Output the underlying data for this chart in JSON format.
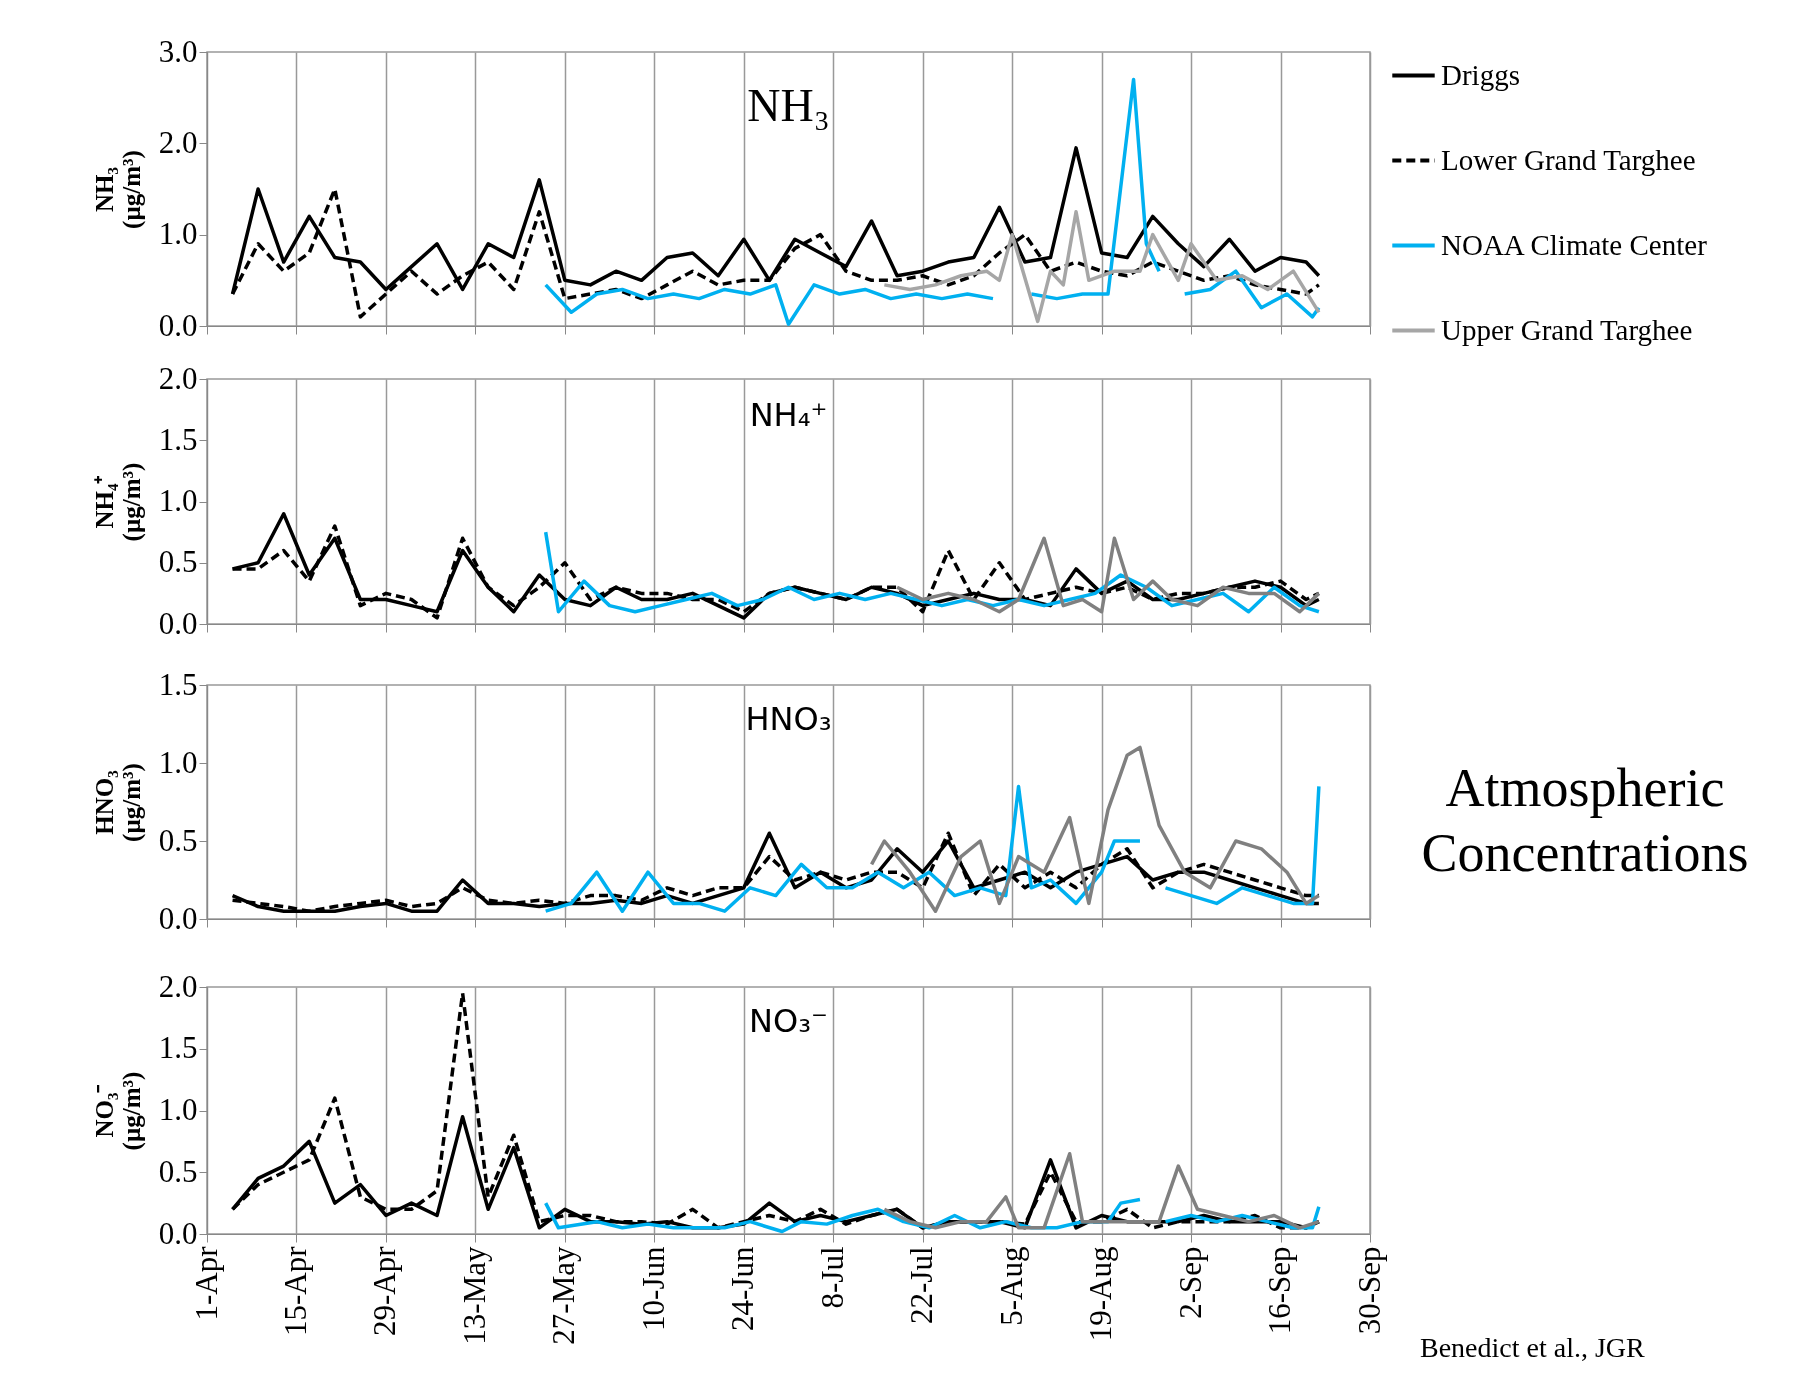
{
  "chart_data": [
    {
      "type": "line",
      "title": "NH₃",
      "ylabel": "NH₃ (µg/m³)",
      "xlim": [
        "--04-01",
        "--09-30"
      ],
      "xticks": [
        {
          "value": "--04-01",
          "label": "1-Apr"
        },
        {
          "value": "--04-15",
          "label": "15-Apr"
        },
        {
          "value": "--04-29",
          "label": "29-Apr"
        },
        {
          "value": "--05-13",
          "label": "13-May"
        },
        {
          "value": "--05-27",
          "label": "27-May"
        },
        {
          "value": "--06-10",
          "label": "10-Jun"
        },
        {
          "value": "--06-24",
          "label": "24-Jun"
        },
        {
          "value": "--07-08",
          "label": "8-Jul"
        },
        {
          "value": "--07-22",
          "label": "22-Jul"
        },
        {
          "value": "--08-05",
          "label": "5-Aug"
        },
        {
          "value": "--08-19",
          "label": "19-Aug"
        },
        {
          "value": "--09-02",
          "label": "2-Sep"
        },
        {
          "value": "--09-16",
          "label": "16-Sep"
        },
        {
          "value": "--09-30",
          "label": "30-Sep"
        }
      ],
      "ylim": [
        0,
        3
      ],
      "yticks": [
        {
          "value": 0,
          "label": "0.0"
        },
        {
          "value": 1,
          "label": "1.0"
        },
        {
          "value": 2,
          "label": "2.0"
        },
        {
          "value": 3,
          "label": "3.0"
        }
      ],
      "grid": "x",
      "tick_labels": "y",
      "legend": "right",
      "x": [
        "--04-05",
        "--04-09",
        "--04-13",
        "--04-17",
        "--04-21",
        "--04-25",
        "--04-29",
        "--05-03",
        "--05-07",
        "--05-11",
        "--05-15",
        "--05-19",
        "--05-23",
        "--05-27",
        "--05-31",
        "--06-04",
        "--06-08",
        "--06-12",
        "--06-16",
        "--06-20",
        "--06-24",
        "--06-28",
        "--07-02",
        "--07-06",
        "--07-10",
        "--07-14",
        "--07-18",
        "--07-22",
        "--07-26",
        "--07-30",
        "--08-03",
        "--08-07",
        "--08-11",
        "--08-15",
        "--08-19",
        "--08-23",
        "--08-27",
        "--08-31",
        "--09-04",
        "--09-08",
        "--09-12",
        "--09-16",
        "--09-20",
        "--09-22"
      ],
      "series": [
        {
          "name": "Driggs",
          "color": "#000000",
          "line_style": "solid",
          "values": [
            0.35,
            1.5,
            0.7,
            1.2,
            0.75,
            0.7,
            0.4,
            0.65,
            0.9,
            0.4,
            0.9,
            0.75,
            1.6,
            0.5,
            0.45,
            0.6,
            0.5,
            0.75,
            0.8,
            0.55,
            0.95,
            0.5,
            0.95,
            0.8,
            0.65,
            1.15,
            0.55,
            0.6,
            0.7,
            0.75,
            1.3,
            0.7,
            0.75,
            1.95,
            0.8,
            0.75,
            1.2,
            0.9,
            0.65,
            0.95,
            0.6,
            0.75,
            0.7,
            0.55
          ]
        },
        {
          "name": "Lower Grand Targhee",
          "color": "#000000",
          "line_style": "dashed",
          "values": [
            0.35,
            0.9,
            0.6,
            0.8,
            1.5,
            0.1,
            0.35,
            0.6,
            0.35,
            0.55,
            0.7,
            0.4,
            1.25,
            0.3,
            0.35,
            0.4,
            0.3,
            0.45,
            0.6,
            0.45,
            0.5,
            0.5,
            0.85,
            1.0,
            0.6,
            0.5,
            0.5,
            0.55,
            0.45,
            0.55,
            0.8,
            1.0,
            0.6,
            0.7,
            0.6,
            0.55,
            0.7,
            0.6,
            0.5,
            0.55,
            0.45,
            0.4,
            0.35,
            0.45
          ]
        },
        {
          "name": "NOAA Climate Center",
          "color": "#00b0f0",
          "line_style": "solid",
          "x": [
            "--05-24",
            "--05-28",
            "--06-01",
            "--06-05",
            "--06-09",
            "--06-13",
            "--06-17",
            "--06-21",
            "--06-25",
            "--06-29",
            "--07-01",
            "--07-05",
            "--07-09",
            "--07-13",
            "--07-17",
            "--07-21",
            "--07-25",
            "--07-29",
            "--08-02",
            "--08-04",
            "--08-08",
            "--08-12",
            "--08-16",
            "--08-20",
            "--08-24",
            "--08-26",
            "--08-28",
            "--08-30",
            "--09-01",
            "--09-05",
            "--09-09",
            "--09-13",
            "--09-17",
            "--09-21",
            "--09-22"
          ],
          "values": [
            0.45,
            0.15,
            0.35,
            0.4,
            0.3,
            0.35,
            0.3,
            0.4,
            0.35,
            0.45,
            0.02,
            0.45,
            0.35,
            0.4,
            0.3,
            0.35,
            0.3,
            0.35,
            0.3,
            null,
            0.35,
            0.3,
            0.35,
            0.35,
            2.7,
            0.9,
            0.6,
            null,
            0.35,
            0.4,
            0.6,
            0.2,
            0.35,
            0.1,
            0.2
          ]
        },
        {
          "name": "Upper Grand Targhee",
          "color": "#a6a6a6",
          "line_style": "solid",
          "x": [
            "--07-16",
            "--07-20",
            "--07-24",
            "--07-28",
            "--08-01",
            "--08-03",
            "--08-05",
            "--08-09",
            "--08-11",
            "--08-13",
            "--08-15",
            "--08-17",
            "--08-21",
            "--08-25",
            "--08-27",
            "--08-31",
            "--09-02",
            "--09-06",
            "--09-10",
            "--09-14",
            "--09-18",
            "--09-22"
          ],
          "values": [
            0.45,
            0.4,
            0.45,
            0.55,
            0.6,
            0.5,
            1.0,
            0.05,
            0.6,
            0.45,
            1.25,
            0.5,
            0.6,
            0.6,
            1.0,
            0.5,
            0.9,
            0.5,
            0.55,
            0.4,
            0.6,
            0.15
          ]
        }
      ]
    },
    {
      "type": "line",
      "title": "NH₄⁺",
      "ylabel": "NH₄⁺ (µg/m³)",
      "xlim": [
        "--04-01",
        "--09-30"
      ],
      "xticks": [
        {
          "value": "--04-01",
          "label": "1-Apr"
        },
        {
          "value": "--04-15",
          "label": "15-Apr"
        },
        {
          "value": "--04-29",
          "label": "29-Apr"
        },
        {
          "value": "--05-13",
          "label": "13-May"
        },
        {
          "value": "--05-27",
          "label": "27-May"
        },
        {
          "value": "--06-10",
          "label": "10-Jun"
        },
        {
          "value": "--06-24",
          "label": "24-Jun"
        },
        {
          "value": "--07-08",
          "label": "8-Jul"
        },
        {
          "value": "--07-22",
          "label": "22-Jul"
        },
        {
          "value": "--08-05",
          "label": "5-Aug"
        },
        {
          "value": "--08-19",
          "label": "19-Aug"
        },
        {
          "value": "--09-02",
          "label": "2-Sep"
        },
        {
          "value": "--09-16",
          "label": "16-Sep"
        },
        {
          "value": "--09-30",
          "label": "30-Sep"
        }
      ],
      "ylim": [
        0,
        2
      ],
      "yticks": [
        {
          "value": 0,
          "label": "0.0"
        },
        {
          "value": 0.5,
          "label": "0.5"
        },
        {
          "value": 1,
          "label": "1.0"
        },
        {
          "value": 1.5,
          "label": "1.5"
        },
        {
          "value": 2,
          "label": "2.0"
        }
      ],
      "grid": "x",
      "tick_labels": "y",
      "x": [
        "--04-05",
        "--04-09",
        "--04-13",
        "--04-17",
        "--04-21",
        "--04-25",
        "--04-29",
        "--05-03",
        "--05-07",
        "--05-11",
        "--05-15",
        "--05-19",
        "--05-23",
        "--05-27",
        "--05-31",
        "--06-04",
        "--06-08",
        "--06-12",
        "--06-16",
        "--06-20",
        "--06-24",
        "--06-28",
        "--07-02",
        "--07-06",
        "--07-10",
        "--07-14",
        "--07-18",
        "--07-22",
        "--07-26",
        "--07-30",
        "--08-03",
        "--08-07",
        "--08-11",
        "--08-15",
        "--08-19",
        "--08-23",
        "--08-27",
        "--08-31",
        "--09-04",
        "--09-08",
        "--09-12",
        "--09-16",
        "--09-20",
        "--09-22"
      ],
      "series": [
        {
          "color": "#000000",
          "line_style": "solid",
          "values": [
            0.45,
            0.5,
            0.9,
            0.4,
            0.7,
            0.2,
            0.2,
            0.15,
            0.1,
            0.6,
            0.3,
            0.1,
            0.4,
            0.2,
            0.15,
            0.3,
            0.2,
            0.2,
            0.25,
            0.15,
            0.05,
            0.25,
            0.3,
            0.25,
            0.2,
            0.3,
            0.25,
            0.15,
            0.2,
            0.25,
            0.2,
            0.2,
            0.15,
            0.45,
            0.25,
            0.35,
            0.2,
            0.2,
            0.25,
            0.3,
            0.35,
            0.3,
            0.15,
            0.2
          ]
        },
        {
          "color": "#000000",
          "line_style": "dashed",
          "values": [
            0.45,
            0.45,
            0.6,
            0.35,
            0.8,
            0.15,
            0.25,
            0.2,
            0.05,
            0.7,
            0.3,
            0.15,
            0.3,
            0.5,
            0.2,
            0.3,
            0.25,
            0.25,
            0.2,
            0.2,
            0.1,
            0.25,
            0.3,
            0.25,
            0.2,
            0.3,
            0.3,
            0.1,
            0.6,
            0.2,
            0.5,
            0.2,
            0.25,
            0.3,
            0.25,
            0.3,
            0.2,
            0.25,
            0.25,
            0.3,
            0.3,
            0.35,
            0.2,
            0.25
          ]
        },
        {
          "color": "#00b0f0",
          "line_style": "solid",
          "x": [
            "--05-24",
            "--05-26",
            "--05-30",
            "--06-03",
            "--06-07",
            "--06-11",
            "--06-15",
            "--06-19",
            "--06-23",
            "--06-27",
            "--07-01",
            "--07-05",
            "--07-09",
            "--07-13",
            "--07-17",
            "--07-21",
            "--07-25",
            "--07-29",
            "--08-02",
            "--08-06",
            "--08-10",
            "--08-14",
            "--08-18",
            "--08-22",
            "--08-26",
            "--08-30",
            "--09-03",
            "--09-07",
            "--09-11",
            "--09-15",
            "--09-19",
            "--09-22"
          ],
          "values": [
            0.75,
            0.1,
            0.35,
            0.15,
            0.1,
            0.15,
            0.2,
            0.25,
            0.15,
            0.2,
            0.3,
            0.2,
            0.25,
            0.2,
            0.25,
            0.2,
            0.15,
            0.2,
            0.15,
            0.2,
            0.15,
            0.2,
            0.25,
            0.4,
            0.3,
            0.15,
            0.2,
            0.25,
            0.1,
            0.3,
            0.15,
            0.1
          ]
        },
        {
          "color": "#808080",
          "line_style": "solid",
          "x": [
            "--07-18",
            "--07-22",
            "--07-26",
            "--07-30",
            "--08-03",
            "--08-06",
            "--08-10",
            "--08-13",
            "--08-16",
            "--08-19",
            "--08-21",
            "--08-24",
            "--08-27",
            "--08-30",
            "--09-03",
            "--09-07",
            "--09-11",
            "--09-15",
            "--09-19",
            "--09-22"
          ],
          "values": [
            0.3,
            0.2,
            0.25,
            0.2,
            0.1,
            0.2,
            0.7,
            0.15,
            0.2,
            0.1,
            0.7,
            0.2,
            0.35,
            0.2,
            0.15,
            0.3,
            0.25,
            0.25,
            0.1,
            0.25
          ]
        }
      ]
    },
    {
      "type": "line",
      "title": "HNO₃",
      "ylabel": "HNO₃ (µg/m³)",
      "annotations": [
        "Atmospheric Concentrations"
      ],
      "xlim": [
        "--04-01",
        "--09-30"
      ],
      "xticks": [
        {
          "value": "--04-01",
          "label": "1-Apr"
        },
        {
          "value": "--04-15",
          "label": "15-Apr"
        },
        {
          "value": "--04-29",
          "label": "29-Apr"
        },
        {
          "value": "--05-13",
          "label": "13-May"
        },
        {
          "value": "--05-27",
          "label": "27-May"
        },
        {
          "value": "--06-10",
          "label": "10-Jun"
        },
        {
          "value": "--06-24",
          "label": "24-Jun"
        },
        {
          "value": "--07-08",
          "label": "8-Jul"
        },
        {
          "value": "--07-22",
          "label": "22-Jul"
        },
        {
          "value": "--08-05",
          "label": "5-Aug"
        },
        {
          "value": "--08-19",
          "label": "19-Aug"
        },
        {
          "value": "--09-02",
          "label": "2-Sep"
        },
        {
          "value": "--09-16",
          "label": "16-Sep"
        },
        {
          "value": "--09-30",
          "label": "30-Sep"
        }
      ],
      "ylim": [
        0,
        1.5
      ],
      "yticks": [
        {
          "value": 0,
          "label": "0.0"
        },
        {
          "value": 0.5,
          "label": "0.5"
        },
        {
          "value": 1,
          "label": "1.0"
        },
        {
          "value": 1.5,
          "label": "1.5"
        }
      ],
      "grid": "x",
      "tick_labels": "y",
      "x": [
        "--04-05",
        "--04-09",
        "--04-13",
        "--04-17",
        "--04-21",
        "--04-25",
        "--04-29",
        "--05-03",
        "--05-07",
        "--05-11",
        "--05-15",
        "--05-19",
        "--05-23",
        "--05-27",
        "--05-31",
        "--06-04",
        "--06-08",
        "--06-12",
        "--06-16",
        "--06-20",
        "--06-24",
        "--06-28",
        "--07-02",
        "--07-06",
        "--07-10",
        "--07-14",
        "--07-18",
        "--07-22",
        "--07-26",
        "--07-30",
        "--08-03",
        "--08-07",
        "--08-11",
        "--08-15",
        "--08-19",
        "--08-23",
        "--08-27",
        "--08-31",
        "--09-04",
        "--09-08",
        "--09-12",
        "--09-16",
        "--09-20",
        "--09-22"
      ],
      "series": [
        {
          "color": "#000000",
          "line_style": "solid",
          "values": [
            0.15,
            0.08,
            0.05,
            0.05,
            0.05,
            0.08,
            0.1,
            0.05,
            0.05,
            0.25,
            0.1,
            0.1,
            0.08,
            0.1,
            0.1,
            0.12,
            0.1,
            0.15,
            0.1,
            0.15,
            0.2,
            0.55,
            0.2,
            0.3,
            0.2,
            0.25,
            0.45,
            0.3,
            0.5,
            0.2,
            0.25,
            0.3,
            0.2,
            0.3,
            0.35,
            0.4,
            0.25,
            0.3,
            0.3,
            0.25,
            0.2,
            0.15,
            0.1,
            0.1
          ]
        },
        {
          "color": "#000000",
          "line_style": "dashed",
          "values": [
            0.12,
            0.1,
            0.08,
            0.05,
            0.08,
            0.1,
            0.12,
            0.08,
            0.1,
            0.2,
            0.12,
            0.1,
            0.12,
            0.1,
            0.15,
            0.15,
            0.12,
            0.2,
            0.15,
            0.2,
            0.2,
            0.4,
            0.25,
            0.3,
            0.25,
            0.3,
            0.3,
            0.2,
            0.55,
            0.15,
            0.35,
            0.2,
            0.3,
            0.2,
            0.35,
            0.45,
            0.2,
            0.3,
            0.35,
            0.3,
            0.25,
            0.2,
            0.15,
            0.15
          ]
        },
        {
          "color": "#00b0f0",
          "line_style": "solid",
          "x": [
            "--05-24",
            "--05-28",
            "--06-01",
            "--06-05",
            "--06-09",
            "--06-13",
            "--06-17",
            "--06-21",
            "--06-25",
            "--06-29",
            "--07-03",
            "--07-07",
            "--07-11",
            "--07-15",
            "--07-19",
            "--07-23",
            "--07-27",
            "--07-31",
            "--08-04",
            "--08-06",
            "--08-08",
            "--08-11",
            "--08-15",
            "--08-19",
            "--08-21",
            "--08-25",
            "--08-27",
            "--08-29",
            "--09-02",
            "--09-06",
            "--09-10",
            "--09-14",
            "--09-18",
            "--09-21",
            "--09-22"
          ],
          "values": [
            0.05,
            0.1,
            0.3,
            0.05,
            0.3,
            0.1,
            0.1,
            0.05,
            0.2,
            0.15,
            0.35,
            0.2,
            0.2,
            0.3,
            0.2,
            0.3,
            0.15,
            0.2,
            0.15,
            0.85,
            0.2,
            0.25,
            0.1,
            0.3,
            0.5,
            0.5,
            null,
            0.2,
            0.15,
            0.1,
            0.2,
            0.15,
            0.1,
            0.1,
            0.85
          ]
        },
        {
          "color": "#808080",
          "line_style": "solid",
          "x": [
            "--07-14",
            "--07-16",
            "--07-20",
            "--07-24",
            "--07-28",
            "--07-31",
            "--08-03",
            "--08-06",
            "--08-10",
            "--08-14",
            "--08-17",
            "--08-20",
            "--08-23",
            "--08-25",
            "--08-28",
            "--09-01",
            "--09-05",
            "--09-09",
            "--09-13",
            "--09-17",
            "--09-20",
            "--09-22"
          ],
          "values": [
            0.35,
            0.5,
            0.3,
            0.05,
            0.4,
            0.5,
            0.1,
            0.4,
            0.3,
            0.65,
            0.1,
            0.7,
            1.05,
            1.1,
            0.6,
            0.3,
            0.2,
            0.5,
            0.45,
            0.3,
            0.1,
            0.15
          ]
        }
      ]
    },
    {
      "type": "line",
      "title": "NO₃⁻",
      "ylabel": "NO₃⁻ (µg/m³)",
      "annotations": [
        "Benedict et al., JGR"
      ],
      "xlim": [
        "--04-01",
        "--09-30"
      ],
      "xticks": [
        {
          "value": "--04-01",
          "label": "1-Apr"
        },
        {
          "value": "--04-15",
          "label": "15-Apr"
        },
        {
          "value": "--04-29",
          "label": "29-Apr"
        },
        {
          "value": "--05-13",
          "label": "13-May"
        },
        {
          "value": "--05-27",
          "label": "27-May"
        },
        {
          "value": "--06-10",
          "label": "10-Jun"
        },
        {
          "value": "--06-24",
          "label": "24-Jun"
        },
        {
          "value": "--07-08",
          "label": "8-Jul"
        },
        {
          "value": "--07-22",
          "label": "22-Jul"
        },
        {
          "value": "--08-05",
          "label": "5-Aug"
        },
        {
          "value": "--08-19",
          "label": "19-Aug"
        },
        {
          "value": "--09-02",
          "label": "2-Sep"
        },
        {
          "value": "--09-16",
          "label": "16-Sep"
        },
        {
          "value": "--09-30",
          "label": "30-Sep"
        }
      ],
      "ylim": [
        0,
        2
      ],
      "yticks": [
        {
          "value": 0,
          "label": "0.0"
        },
        {
          "value": 0.5,
          "label": "0.5"
        },
        {
          "value": 1,
          "label": "1.0"
        },
        {
          "value": 1.5,
          "label": "1.5"
        },
        {
          "value": 2,
          "label": "2.0"
        }
      ],
      "grid": "x",
      "x": [
        "--04-05",
        "--04-09",
        "--04-13",
        "--04-17",
        "--04-21",
        "--04-25",
        "--04-29",
        "--05-03",
        "--05-07",
        "--05-11",
        "--05-15",
        "--05-19",
        "--05-23",
        "--05-27",
        "--05-31",
        "--06-04",
        "--06-08",
        "--06-12",
        "--06-16",
        "--06-20",
        "--06-24",
        "--06-28",
        "--07-02",
        "--07-06",
        "--07-10",
        "--07-14",
        "--07-18",
        "--07-22",
        "--07-26",
        "--07-30",
        "--08-03",
        "--08-07",
        "--08-11",
        "--08-15",
        "--08-19",
        "--08-23",
        "--08-27",
        "--08-31",
        "--09-04",
        "--09-08",
        "--09-12",
        "--09-16",
        "--09-20",
        "--09-22"
      ],
      "series": [
        {
          "color": "#000000",
          "line_style": "solid",
          "values": [
            0.2,
            0.45,
            0.55,
            0.75,
            0.25,
            0.4,
            0.15,
            0.25,
            0.15,
            0.95,
            0.2,
            0.7,
            0.05,
            0.2,
            0.1,
            0.1,
            0.08,
            0.1,
            0.05,
            0.05,
            0.08,
            0.25,
            0.1,
            0.15,
            0.1,
            0.15,
            0.2,
            0.05,
            0.1,
            0.1,
            0.1,
            0.05,
            0.6,
            0.05,
            0.15,
            0.1,
            0.1,
            0.1,
            0.15,
            0.1,
            0.1,
            0.1,
            0.05,
            0.1
          ]
        },
        {
          "color": "#000000",
          "line_style": "dashed",
          "values": [
            0.2,
            0.4,
            0.5,
            0.6,
            1.1,
            0.3,
            0.2,
            0.2,
            0.35,
            1.95,
            0.3,
            0.8,
            0.1,
            0.15,
            0.15,
            0.1,
            0.1,
            0.08,
            0.2,
            0.05,
            0.1,
            0.15,
            0.1,
            0.2,
            0.08,
            0.15,
            0.2,
            0.05,
            0.1,
            0.1,
            0.1,
            0.08,
            0.5,
            0.1,
            0.1,
            0.2,
            0.05,
            0.1,
            0.1,
            0.1,
            0.15,
            0.05,
            0.05,
            0.1
          ]
        },
        {
          "color": "#00b0f0",
          "line_style": "solid",
          "x": [
            "--05-24",
            "--05-26",
            "--06-01",
            "--06-05",
            "--06-09",
            "--06-13",
            "--06-17",
            "--06-21",
            "--06-25",
            "--06-30",
            "--07-03",
            "--07-07",
            "--07-11",
            "--07-15",
            "--07-19",
            "--07-23",
            "--07-27",
            "--07-31",
            "--08-04",
            "--08-08",
            "--08-12",
            "--08-16",
            "--08-20",
            "--08-22",
            "--08-25",
            "--08-27",
            "--08-29",
            "--09-02",
            "--09-06",
            "--09-10",
            "--09-14",
            "--09-18",
            "--09-21",
            "--09-22"
          ],
          "values": [
            0.25,
            0.05,
            0.1,
            0.05,
            0.08,
            0.05,
            0.05,
            0.05,
            0.1,
            0.02,
            0.1,
            0.08,
            0.15,
            0.2,
            0.1,
            0.05,
            0.15,
            0.05,
            0.1,
            0.05,
            0.05,
            0.1,
            0.1,
            0.25,
            0.28,
            null,
            0.1,
            0.15,
            0.1,
            0.15,
            0.1,
            0.05,
            0.05,
            0.22
          ]
        },
        {
          "color": "#808080",
          "line_style": "solid",
          "x": [
            "--07-16",
            "--07-20",
            "--07-24",
            "--07-28",
            "--08-01",
            "--08-04",
            "--08-06",
            "--08-10",
            "--08-14",
            "--08-16",
            "--08-20",
            "--08-24",
            "--08-28",
            "--08-31",
            "--09-03",
            "--09-07",
            "--09-11",
            "--09-15",
            "--09-19",
            "--09-22"
          ],
          "values": [
            0.2,
            0.1,
            0.05,
            0.1,
            0.1,
            0.3,
            0.05,
            0.05,
            0.65,
            0.1,
            0.1,
            0.1,
            0.1,
            0.55,
            0.2,
            0.15,
            0.1,
            0.15,
            0.05,
            0.1
          ]
        }
      ]
    }
  ]
}
